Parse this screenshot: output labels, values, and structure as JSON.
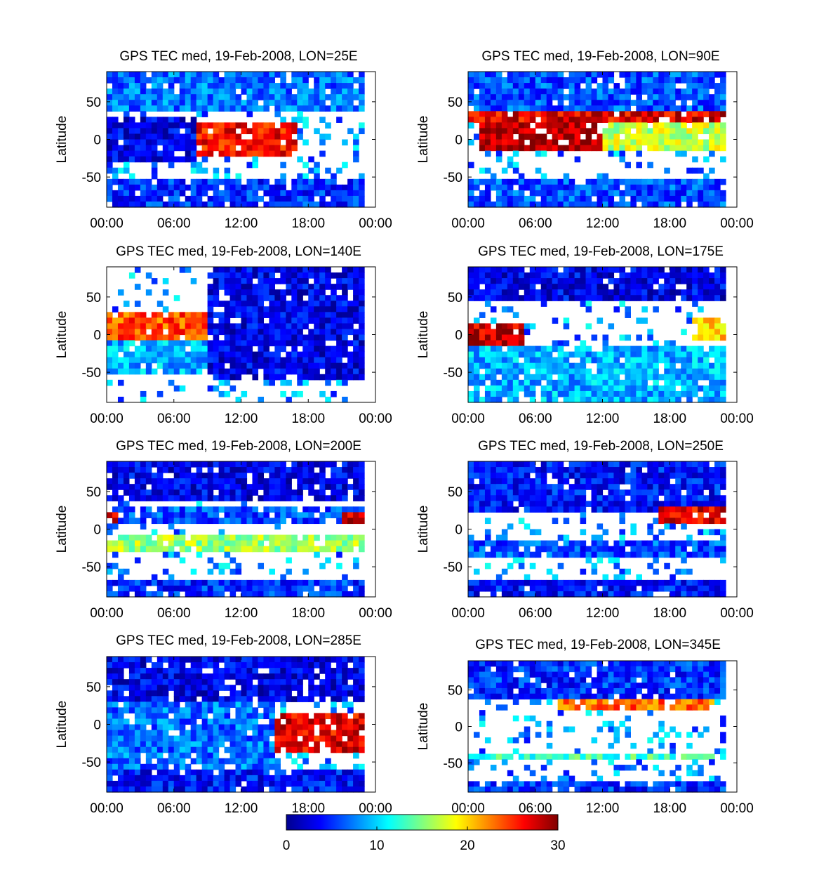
{
  "chart_data": {
    "type": "heatmap",
    "figure": "GPS TEC median latitude-time maps",
    "colorbar": {
      "min": 0,
      "max": 30,
      "ticks": [
        "0",
        "10",
        "20",
        "30"
      ],
      "colormap": "jet"
    },
    "colormap_stops": [
      "#00008f",
      "#0000ff",
      "#0080ff",
      "#00ffff",
      "#80ff80",
      "#ffff00",
      "#ff8000",
      "#ff0000",
      "#800000"
    ],
    "panels": [
      {
        "title": "GPS TEC med, 19-Feb-2008, LON=25E",
        "ylabel": "Latitude",
        "y_ticks": [
          "50",
          "0",
          "-50"
        ],
        "x_ticks": [
          "00:00",
          "06:00",
          "12:00",
          "18:00",
          "00:00"
        ],
        "ylim": [
          -90,
          90
        ],
        "xlim_hours": [
          0,
          24
        ],
        "features": [
          {
            "lat": [
              35,
              90
            ],
            "hours": [
              0,
              23
            ],
            "tec": 7
          },
          {
            "lat": [
              -20,
              20
            ],
            "hours": [
              8,
              17
            ],
            "tec": 26
          },
          {
            "lat": [
              -30,
              30
            ],
            "hours": [
              0,
              8
            ],
            "tec": 3
          },
          {
            "lat": [
              -90,
              -55
            ],
            "hours": [
              0,
              23
            ],
            "tec": 5
          }
        ]
      },
      {
        "title": "GPS TEC med, 19-Feb-2008, LON=90E",
        "ylabel": "Latitude",
        "y_ticks": [
          "50",
          "0",
          "-50"
        ],
        "x_ticks": [
          "00:00",
          "06:00",
          "12:00",
          "18:00",
          "00:00"
        ],
        "ylim": [
          -90,
          90
        ],
        "xlim_hours": [
          0,
          24
        ],
        "features": [
          {
            "lat": [
              40,
              90
            ],
            "hours": [
              0,
              23
            ],
            "tec": 6
          },
          {
            "lat": [
              25,
              35
            ],
            "hours": [
              0,
              23
            ],
            "tec": 27
          },
          {
            "lat": [
              -15,
              20
            ],
            "hours": [
              1,
              12
            ],
            "tec": 29
          },
          {
            "lat": [
              -15,
              20
            ],
            "hours": [
              12,
              23
            ],
            "tec": 17
          },
          {
            "lat": [
              -90,
              -50
            ],
            "hours": [
              0,
              23
            ],
            "tec": 6
          }
        ]
      },
      {
        "title": "GPS TEC med, 19-Feb-2008, LON=140E",
        "ylabel": "Latitude",
        "y_ticks": [
          "50",
          "0",
          "-50"
        ],
        "x_ticks": [
          "00:00",
          "06:00",
          "12:00",
          "18:00",
          "00:00"
        ],
        "ylim": [
          -90,
          90
        ],
        "xlim_hours": [
          0,
          24
        ],
        "features": [
          {
            "lat": [
              -10,
              30
            ],
            "hours": [
              0,
              9
            ],
            "tec": 24
          },
          {
            "lat": [
              -60,
              90
            ],
            "hours": [
              9,
              23
            ],
            "tec": 3
          },
          {
            "lat": [
              -55,
              -10
            ],
            "hours": [
              0,
              9
            ],
            "tec": 9
          }
        ]
      },
      {
        "title": "GPS TEC med, 19-Feb-2008, LON=175E",
        "ylabel": "Latitude",
        "y_ticks": [
          "50",
          "0",
          "-50"
        ],
        "x_ticks": [
          "00:00",
          "06:00",
          "12:00",
          "18:00",
          "00:00"
        ],
        "ylim": [
          -90,
          90
        ],
        "xlim_hours": [
          0,
          24
        ],
        "features": [
          {
            "lat": [
              45,
              90
            ],
            "hours": [
              0,
              23
            ],
            "tec": 3
          },
          {
            "lat": [
              -15,
              15
            ],
            "hours": [
              0,
              5
            ],
            "tec": 28
          },
          {
            "lat": [
              -10,
              20
            ],
            "hours": [
              20,
              23
            ],
            "tec": 20
          },
          {
            "lat": [
              -90,
              -15
            ],
            "hours": [
              0,
              23
            ],
            "tec": 9
          }
        ]
      },
      {
        "title": "GPS TEC med, 19-Feb-2008, LON=200E",
        "ylabel": "Latitude",
        "y_ticks": [
          "50",
          "0",
          "-50"
        ],
        "x_ticks": [
          "00:00",
          "06:00",
          "12:00",
          "18:00",
          "00:00"
        ],
        "ylim": [
          -90,
          90
        ],
        "xlim_hours": [
          0,
          24
        ],
        "features": [
          {
            "lat": [
              40,
              90
            ],
            "hours": [
              0,
              23
            ],
            "tec": 3
          },
          {
            "lat": [
              5,
              30
            ],
            "hours": [
              0,
              23
            ],
            "tec": 6
          },
          {
            "lat": [
              5,
              25
            ],
            "hours": [
              0,
              1
            ],
            "tec": 28
          },
          {
            "lat": [
              5,
              25
            ],
            "hours": [
              21,
              23
            ],
            "tec": 28
          },
          {
            "lat": [
              -30,
              -10
            ],
            "hours": [
              0,
              23
            ],
            "tec": 16
          },
          {
            "lat": [
              -90,
              -70
            ],
            "hours": [
              0,
              23
            ],
            "tec": 5
          }
        ]
      },
      {
        "title": "GPS TEC med, 19-Feb-2008, LON=250E",
        "ylabel": "Latitude",
        "y_ticks": [
          "50",
          "0",
          "-50"
        ],
        "x_ticks": [
          "00:00",
          "06:00",
          "12:00",
          "18:00",
          "00:00"
        ],
        "ylim": [
          -90,
          90
        ],
        "xlim_hours": [
          0,
          24
        ],
        "features": [
          {
            "lat": [
              20,
              90
            ],
            "hours": [
              0,
              23
            ],
            "tec": 4
          },
          {
            "lat": [
              5,
              30
            ],
            "hours": [
              17,
              23
            ],
            "tec": 27
          },
          {
            "lat": [
              -35,
              -15
            ],
            "hours": [
              0,
              23
            ],
            "tec": 6
          },
          {
            "lat": [
              -90,
              -70
            ],
            "hours": [
              0,
              23
            ],
            "tec": 4
          }
        ]
      },
      {
        "title": "GPS TEC med, 19-Feb-2008, LON=285E",
        "ylabel": "Latitude",
        "y_ticks": [
          "50",
          "0",
          "-50"
        ],
        "x_ticks": [
          "00:00",
          "06:00",
          "12:00",
          "18:00",
          "00:00"
        ],
        "ylim": [
          -90,
          90
        ],
        "xlim_hours": [
          0,
          24
        ],
        "features": [
          {
            "lat": [
              30,
              90
            ],
            "hours": [
              0,
              23
            ],
            "tec": 3
          },
          {
            "lat": [
              -35,
              15
            ],
            "hours": [
              15,
              23
            ],
            "tec": 27
          },
          {
            "lat": [
              -60,
              30
            ],
            "hours": [
              0,
              15
            ],
            "tec": 7
          },
          {
            "lat": [
              -90,
              -60
            ],
            "hours": [
              0,
              23
            ],
            "tec": 4
          }
        ]
      },
      {
        "title": "GPS TEC med, 19-Feb-2008, LON=345E",
        "ylabel": "Latitude",
        "y_ticks": [
          "50",
          "0",
          "-50"
        ],
        "x_ticks": [
          "00:00",
          "06:00",
          "12:00",
          "18:00",
          "00:00"
        ],
        "ylim": [
          -90,
          90
        ],
        "xlim_hours": [
          0,
          24
        ],
        "features": [
          {
            "lat": [
              35,
              90
            ],
            "hours": [
              0,
              23
            ],
            "tec": 5
          },
          {
            "lat": [
              20,
              35
            ],
            "hours": [
              8,
              22
            ],
            "tec": 23
          },
          {
            "lat": [
              -45,
              -38
            ],
            "hours": [
              0,
              23
            ],
            "tec": 13
          },
          {
            "lat": [
              -90,
              -75
            ],
            "hours": [
              0,
              23
            ],
            "tec": 5
          }
        ]
      }
    ]
  }
}
